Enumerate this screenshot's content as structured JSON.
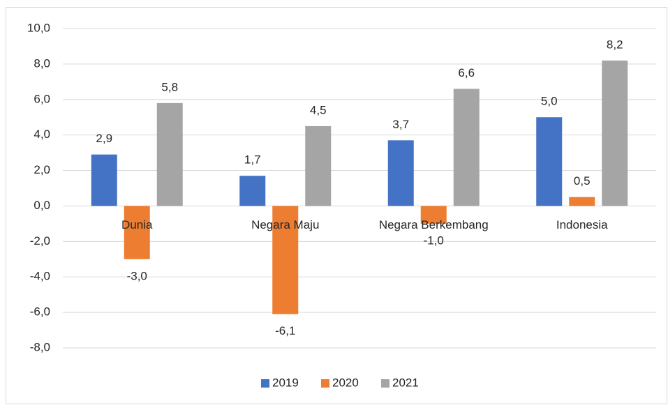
{
  "chart_data": {
    "type": "bar",
    "categories": [
      "Dunia",
      "Negara Maju",
      "Negara Berkembang",
      "Indonesia"
    ],
    "series": [
      {
        "name": "2019",
        "color": "#4472c4",
        "values": [
          2.9,
          1.7,
          3.7,
          5.0
        ],
        "value_labels": [
          "2,9",
          "1,7",
          "3,7",
          "5,0"
        ]
      },
      {
        "name": "2020",
        "color": "#ed7d31",
        "values": [
          -3.0,
          -6.1,
          -1.0,
          0.5
        ],
        "value_labels": [
          "-3,0",
          "-6,1",
          "-1,0",
          "0,5"
        ]
      },
      {
        "name": "2021",
        "color": "#a5a5a5",
        "values": [
          5.8,
          4.5,
          6.6,
          8.2
        ],
        "value_labels": [
          "5,8",
          "4,5",
          "6,6",
          "8,2"
        ]
      }
    ],
    "ylim": [
      -8,
      10
    ],
    "yticks": [
      {
        "value": -8,
        "label": "-8,0"
      },
      {
        "value": -6,
        "label": "-6,0"
      },
      {
        "value": -4,
        "label": "-4,0"
      },
      {
        "value": -2,
        "label": "-2,0"
      },
      {
        "value": 0,
        "label": "0,0"
      },
      {
        "value": 2,
        "label": "2,0"
      },
      {
        "value": 4,
        "label": "4,0"
      },
      {
        "value": 6,
        "label": "6,0"
      },
      {
        "value": 8,
        "label": "8,0"
      },
      {
        "value": 10,
        "label": "10,0"
      }
    ],
    "grid": true,
    "legend": "bottom"
  }
}
